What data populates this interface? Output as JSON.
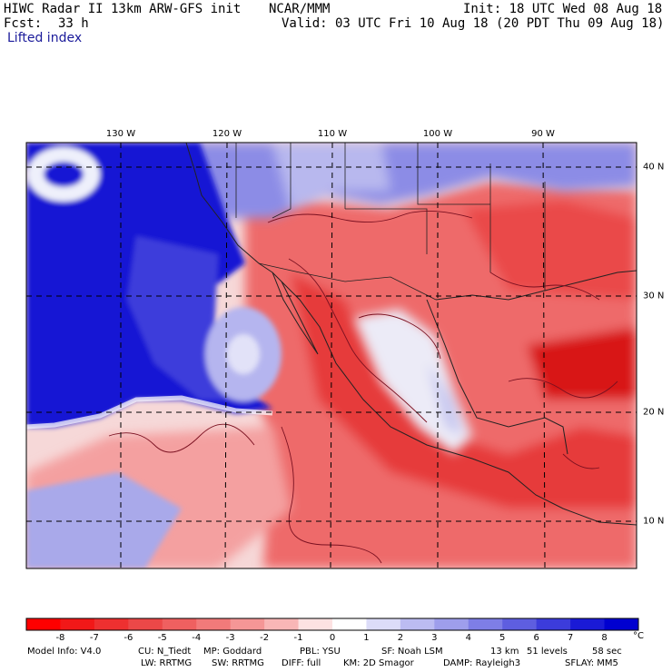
{
  "header": {
    "model_line": "HIWC Radar II 13km ARW-GFS init",
    "org": "NCAR/MMM",
    "init": "Init: 18 UTC Wed 08 Aug 18",
    "fcst_label": "Fcst:",
    "fcst_value": "33 h",
    "valid": "Valid: 03 UTC Fri 10 Aug 18 (20 PDT Thu 09 Aug 18)",
    "field": "Lifted index"
  },
  "map": {
    "lon_labels": [
      "130 W",
      "120 W",
      "110 W",
      "100 W",
      "90 W"
    ],
    "lat_labels": [
      "40 N",
      "30 N",
      "20 N",
      "10 N"
    ],
    "colors": {
      "grid": "#000000",
      "ocean_stable": "#1010d8",
      "land_unstable": "#e84848",
      "neutral": "#f7e4e4"
    }
  },
  "colorbar": {
    "labels": [
      "-8",
      "-7",
      "-6",
      "-5",
      "-4",
      "-3",
      "-2",
      "-1",
      "0",
      "1",
      "2",
      "3",
      "4",
      "5",
      "6",
      "7",
      "8"
    ],
    "unit": "°C",
    "colors": [
      "#ff0000",
      "#f21818",
      "#ee3030",
      "#ec4848",
      "#ef6060",
      "#f27a7a",
      "#f59696",
      "#f9b6b6",
      "#fde2e2",
      "#ffffff",
      "#dcdcf8",
      "#bcbcf2",
      "#9e9eec",
      "#7e7ee6",
      "#5e5ee0",
      "#3c3cdb",
      "#1a1ad6",
      "#0000d0"
    ]
  },
  "footer": {
    "line1": {
      "model_info": "Model Info: V4.0",
      "cu": "CU: N_Tiedt",
      "mp": "MP: Goddard",
      "pbl": "PBL: YSU",
      "sf": "SF: Noah LSM",
      "res": "13 km",
      "levels": "51 levels",
      "dt": "58 sec"
    },
    "line2": {
      "lw": "LW: RRTMG",
      "sw": "SW: RRTMG",
      "diff": "DIFF: full",
      "km": "KM: 2D Smagor",
      "damp": "DAMP: Rayleigh3",
      "sflay": "SFLAY: MM5"
    }
  }
}
